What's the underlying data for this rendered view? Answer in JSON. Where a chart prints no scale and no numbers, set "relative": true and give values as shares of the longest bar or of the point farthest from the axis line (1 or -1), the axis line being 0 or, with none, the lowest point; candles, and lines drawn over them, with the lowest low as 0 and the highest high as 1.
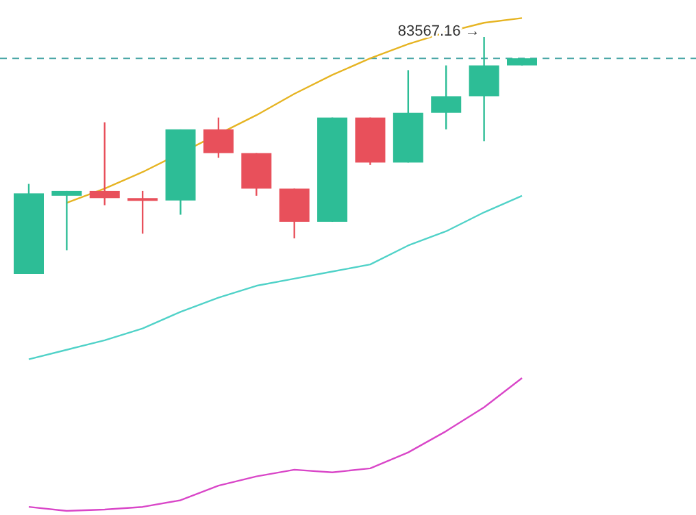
{
  "chart_data": [
    {
      "type": "candlestick",
      "relative": true,
      "categories": [
        null,
        null,
        null,
        null,
        null,
        null,
        null,
        null,
        null,
        null,
        null,
        null,
        null,
        null
      ],
      "ohlc": [
        [
          0,
          0.38,
          0,
          0.34
        ],
        [
          0.33,
          0.35,
          0.1,
          0.35
        ],
        [
          0.35,
          0.64,
          0.29,
          0.32
        ],
        [
          0.32,
          0.35,
          0.17,
          0.31
        ],
        [
          0.31,
          0.61,
          0.25,
          0.61
        ],
        [
          0.61,
          0.66,
          0.49,
          0.51
        ],
        [
          0.51,
          0.51,
          0.33,
          0.36
        ],
        [
          0.36,
          0.36,
          0.15,
          0.22
        ],
        [
          0.22,
          0.66,
          0.22,
          0.66
        ],
        [
          0.66,
          0.66,
          0.46,
          0.47
        ],
        [
          0.47,
          0.86,
          0.47,
          0.68
        ],
        [
          0.68,
          0.88,
          0.61,
          0.75
        ],
        [
          0.75,
          1,
          0.56,
          0.88
        ],
        [
          0.88,
          0.91,
          0.88,
          0.91
        ]
      ],
      "colors": [
        "#2dbd96",
        "#2dbd96",
        "#e8505b",
        "#e8505b",
        "#2dbd96",
        "#e8505b",
        "#e8505b",
        "#e8505b",
        "#2dbd96",
        "#e8505b",
        "#2dbd96",
        "#2dbd96",
        "#2dbd96",
        "#2dbd96"
      ],
      "series": [
        {
          "type": "line",
          "color": "#e6b422",
          "values": [
            null,
            0.3,
            0.36,
            0.43,
            null,
            null,
            0.67,
            0.76,
            0.84,
            0.91,
            0.97,
            1.02,
            1.06,
            1.08
          ]
        },
        {
          "type": "line",
          "color": "#50d2c8",
          "values": [
            -0.36,
            -0.32,
            -0.28,
            -0.23,
            -0.16,
            -0.1,
            -0.05,
            -0.02,
            0.01,
            0.04,
            0.12,
            0.18,
            0.26,
            0.33
          ]
        }
      ],
      "ref_lines": [
        {
          "axis": "y",
          "value": 0.91,
          "color": "#4aa6a6",
          "line_style": "dashed"
        }
      ],
      "annotations": [
        {
          "text": "83567.16 →",
          "y": 1
        }
      ]
    },
    {
      "type": "line",
      "relative": true,
      "categories": [
        null,
        null,
        null,
        null,
        null,
        null,
        null,
        null,
        null,
        null,
        null,
        null,
        null,
        null
      ],
      "series": [
        {
          "color": "#d946c8",
          "values": [
            0.03,
            0,
            0.01,
            0.03,
            0.08,
            0.19,
            0.26,
            0.31,
            0.29,
            0.32,
            0.44,
            0.6,
            0.78,
            1
          ]
        }
      ]
    }
  ]
}
